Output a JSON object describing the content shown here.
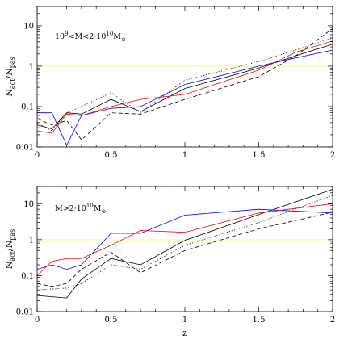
{
  "chart_data": [
    {
      "type": "line",
      "panel": "top",
      "title": "",
      "annotation_main": "10",
      "annotation_sup1": "9",
      "annotation_mid": "<M<2·10",
      "annotation_sup2": "10",
      "annotation_end": "M",
      "annotation_sub": "⊙",
      "xlabel": "",
      "ylabel_main": "N",
      "ylabel_sub1": "act",
      "ylabel_slash": "/N",
      "ylabel_sub2": "pas",
      "xlim": [
        0,
        2
      ],
      "ylim": [
        0.01,
        30
      ],
      "yscale": "log",
      "xticks": [
        "0",
        "0.5",
        "1",
        "1.5",
        "2"
      ],
      "yticks": [
        "0.01",
        "0.1",
        "1",
        "10"
      ],
      "reference_line": {
        "y": 1,
        "color": "#ffff66"
      },
      "series": [
        {
          "color": "#000000",
          "dash": "solid",
          "x": [
            0,
            0.1,
            0.2,
            0.3,
            0.5,
            0.7,
            1.0,
            1.5,
            1.75,
            2.0
          ],
          "y": [
            0.035,
            0.028,
            0.07,
            0.065,
            0.15,
            0.075,
            0.28,
            0.9,
            1.8,
            3.5
          ]
        },
        {
          "color": "#000000",
          "dash": "dashed",
          "x": [
            0,
            0.1,
            0.2,
            0.3,
            0.5,
            0.7,
            1.0,
            1.5,
            1.75,
            2.0
          ],
          "y": [
            0.05,
            0.035,
            0.045,
            0.015,
            0.07,
            0.065,
            0.15,
            0.55,
            1.8,
            8.5
          ]
        },
        {
          "color": "#000000",
          "dash": "dotted",
          "x": [
            0,
            0.1,
            0.2,
            0.3,
            0.5,
            0.7,
            1.0,
            1.5,
            1.75,
            2.0
          ],
          "y": [
            0.04,
            0.025,
            0.07,
            0.1,
            0.22,
            0.07,
            0.45,
            1.3,
            2.5,
            5.0
          ]
        },
        {
          "color": "#0000ff",
          "dash": "solid",
          "x": [
            0,
            0.1,
            0.2,
            0.3,
            0.5,
            0.7,
            1.0,
            1.5,
            1.75,
            2.0
          ],
          "y": [
            0.07,
            0.07,
            0.011,
            0.06,
            0.09,
            0.1,
            0.35,
            1.0,
            1.6,
            2.5
          ]
        },
        {
          "color": "#ff0000",
          "dash": "solid",
          "x": [
            0,
            0.1,
            0.2,
            0.3,
            0.5,
            0.7,
            1.0,
            1.5,
            1.75,
            2.0
          ],
          "y": [
            0.025,
            0.022,
            0.065,
            0.06,
            0.1,
            0.15,
            0.2,
            0.8,
            2.2,
            4.2
          ]
        }
      ]
    },
    {
      "type": "line",
      "panel": "bottom",
      "title": "",
      "annotation_main": "M>2·10",
      "annotation_sup": "10",
      "annotation_end": "M",
      "annotation_sub": "⊙",
      "xlabel": "z",
      "ylabel_main": "N",
      "ylabel_sub1": "act",
      "ylabel_slash": "/N",
      "ylabel_sub2": "pas",
      "xlim": [
        0,
        2
      ],
      "ylim": [
        0.01,
        30
      ],
      "yscale": "log",
      "xticks": [
        "0",
        "0.5",
        "1",
        "1.5",
        "2"
      ],
      "yticks": [
        "0.01",
        "0.1",
        "1",
        "10"
      ],
      "reference_line": {
        "y": 1,
        "color": "#ffff66"
      },
      "series": [
        {
          "color": "#000000",
          "dash": "solid",
          "x": [
            0,
            0.2,
            0.3,
            0.5,
            0.7,
            1.0,
            1.5,
            2.0
          ],
          "y": [
            0.028,
            0.024,
            0.08,
            0.3,
            0.2,
            0.95,
            5.0,
            25
          ]
        },
        {
          "color": "#000000",
          "dash": "dashed",
          "x": [
            0,
            0.1,
            0.2,
            0.3,
            0.5,
            0.7,
            1.0,
            1.5,
            2.0
          ],
          "y": [
            0.06,
            0.05,
            0.06,
            0.15,
            0.45,
            0.12,
            0.5,
            2.0,
            5.8
          ]
        },
        {
          "color": "#000000",
          "dash": "dotted",
          "x": [
            0,
            0.2,
            0.3,
            0.5,
            0.7,
            1.0,
            1.5,
            2.0
          ],
          "y": [
            0.04,
            0.045,
            0.06,
            0.2,
            0.15,
            0.7,
            3.0,
            17
          ]
        },
        {
          "color": "#0000ff",
          "dash": "solid",
          "x": [
            0,
            0.1,
            0.2,
            0.3,
            0.5,
            0.7,
            1.0,
            1.5,
            2.0
          ],
          "y": [
            0.15,
            0.2,
            0.15,
            0.2,
            1.5,
            1.5,
            4.8,
            7.0,
            5.5
          ]
        },
        {
          "color": "#ff0000",
          "dash": "solid",
          "x": [
            0,
            0.1,
            0.2,
            0.3,
            0.5,
            0.7,
            1.0,
            1.5,
            2.0
          ],
          "y": [
            0.1,
            0.25,
            0.3,
            0.3,
            0.7,
            1.8,
            1.6,
            5.5,
            10
          ]
        }
      ]
    }
  ]
}
